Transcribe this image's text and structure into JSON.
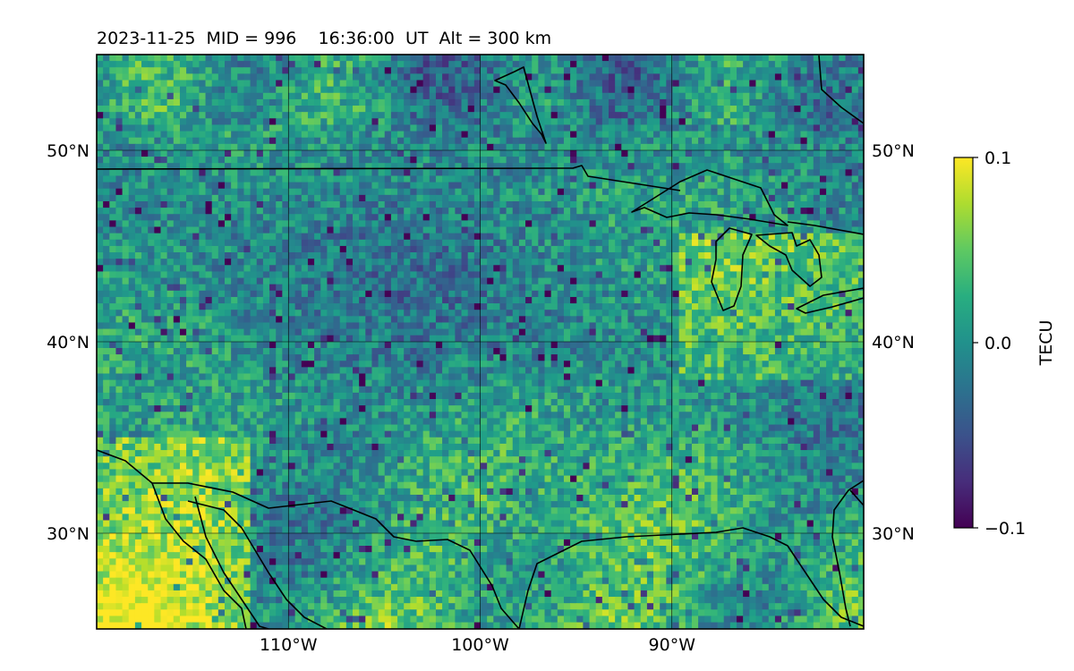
{
  "title": "2023-11-25  MID = 996    16:36:00  UT  Alt = 300 km",
  "map": {
    "lon_range": [
      -120,
      -80
    ],
    "lat_range": [
      25,
      55
    ],
    "lon_ticks": [
      {
        "value": -110,
        "label": "110°W"
      },
      {
        "value": -100,
        "label": "100°W"
      },
      {
        "value": -90,
        "label": "90°W"
      }
    ],
    "lat_ticks": [
      {
        "value": 30,
        "label": "30°N"
      },
      {
        "value": 40,
        "label": "40°N"
      },
      {
        "value": 50,
        "label": "50°N"
      }
    ],
    "gridlines": true
  },
  "colorbar": {
    "label": "TECU",
    "colormap": "viridis",
    "vmin": -0.1,
    "vmax": 0.1,
    "ticks": [
      {
        "value": 0.1,
        "label": "0.1"
      },
      {
        "value": 0.0,
        "label": "0.0"
      },
      {
        "value": -0.1,
        "label": "−0.1"
      }
    ]
  },
  "colors": {
    "viridis_low": "#440154",
    "viridis_mid": "#21918c",
    "viridis_high": "#fde725",
    "coastline": "#000000"
  }
}
